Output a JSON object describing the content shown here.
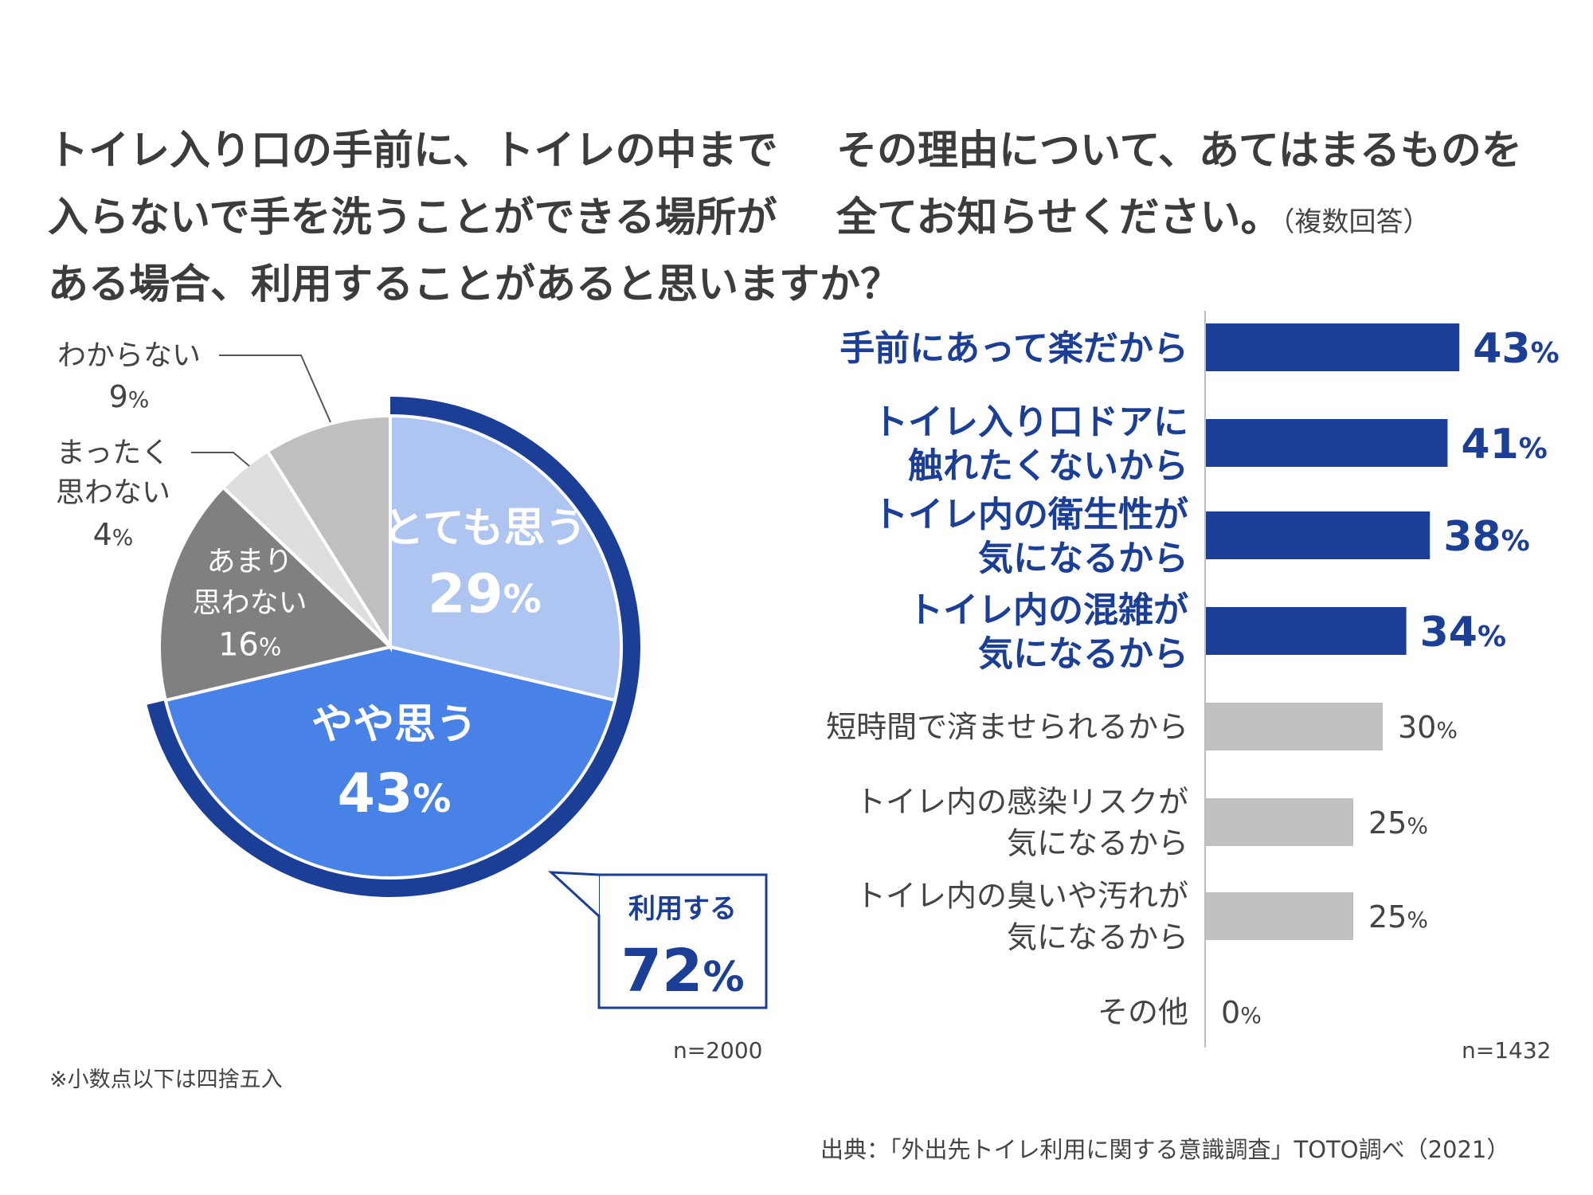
{
  "left_title": {
    "lines": [
      "トイレ入り口の手前に、トイレの中まで",
      "入らないで手を洗うことができる場所が",
      "ある場合、利用することがあると思いますか？"
    ]
  },
  "right_title": {
    "lines": [
      "その理由について、あてはまるものを",
      "全てお知らせください。"
    ],
    "note": "（複数回答）"
  },
  "colors": {
    "navy": "#1b3f96",
    "light_blue": "#aec5f2",
    "mid_blue": "#4882e6",
    "dark_gray": "#808080",
    "very_light_gray": "#dedede",
    "light_gray": "#bfbfbf",
    "bar_gray": "#c0c0c0"
  },
  "chart_data": [
    {
      "type": "pie",
      "slices": [
        {
          "label": "とても思う",
          "value": 29,
          "display": "29%"
        },
        {
          "label": "やや思う",
          "value": 43,
          "display": "43%"
        },
        {
          "label": "あまり 思わない",
          "lines": [
            "あまり",
            "思わない"
          ],
          "value": 16,
          "display": "16%"
        },
        {
          "label": "まったく 思わない",
          "lines": [
            "まったく",
            "思わない"
          ],
          "value": 4,
          "display": "4%"
        },
        {
          "label": "わからない",
          "lines": [
            "わからない"
          ],
          "value": 9,
          "display": "9%"
        }
      ],
      "callout": {
        "label": "利用する",
        "value": 72,
        "display": "72%"
      },
      "n": "n=2000"
    },
    {
      "type": "bar",
      "orientation": "horizontal",
      "categories": [
        {
          "lines": [
            "手前にあって楽だから"
          ],
          "value": 43,
          "display": "43%",
          "highlight": true
        },
        {
          "lines": [
            "トイレ入り口ドアに",
            "触れたくないから"
          ],
          "value": 41,
          "display": "41%",
          "highlight": true
        },
        {
          "lines": [
            "トイレ内の衛生性が",
            "気になるから"
          ],
          "value": 38,
          "display": "38%",
          "highlight": true
        },
        {
          "lines": [
            "トイレ内の混雑が",
            "気になるから"
          ],
          "value": 34,
          "display": "34%",
          "highlight": true
        },
        {
          "lines": [
            "短時間で済ませられるから"
          ],
          "value": 30,
          "display": "30%",
          "highlight": false
        },
        {
          "lines": [
            "トイレ内の感染リスクが",
            "気になるから"
          ],
          "value": 25,
          "display": "25%",
          "highlight": false
        },
        {
          "lines": [
            "トイレ内の臭いや汚れが",
            "気になるから"
          ],
          "value": 25,
          "display": "25%",
          "highlight": false
        },
        {
          "lines": [
            "その他"
          ],
          "value": 0,
          "display": "0%",
          "highlight": false
        }
      ],
      "n": "n=1432"
    }
  ],
  "footnote": "※小数点以下は四捨五入",
  "source": "出典：「外出先トイレ利用に関する意識調査」TOTO調べ（2021）"
}
